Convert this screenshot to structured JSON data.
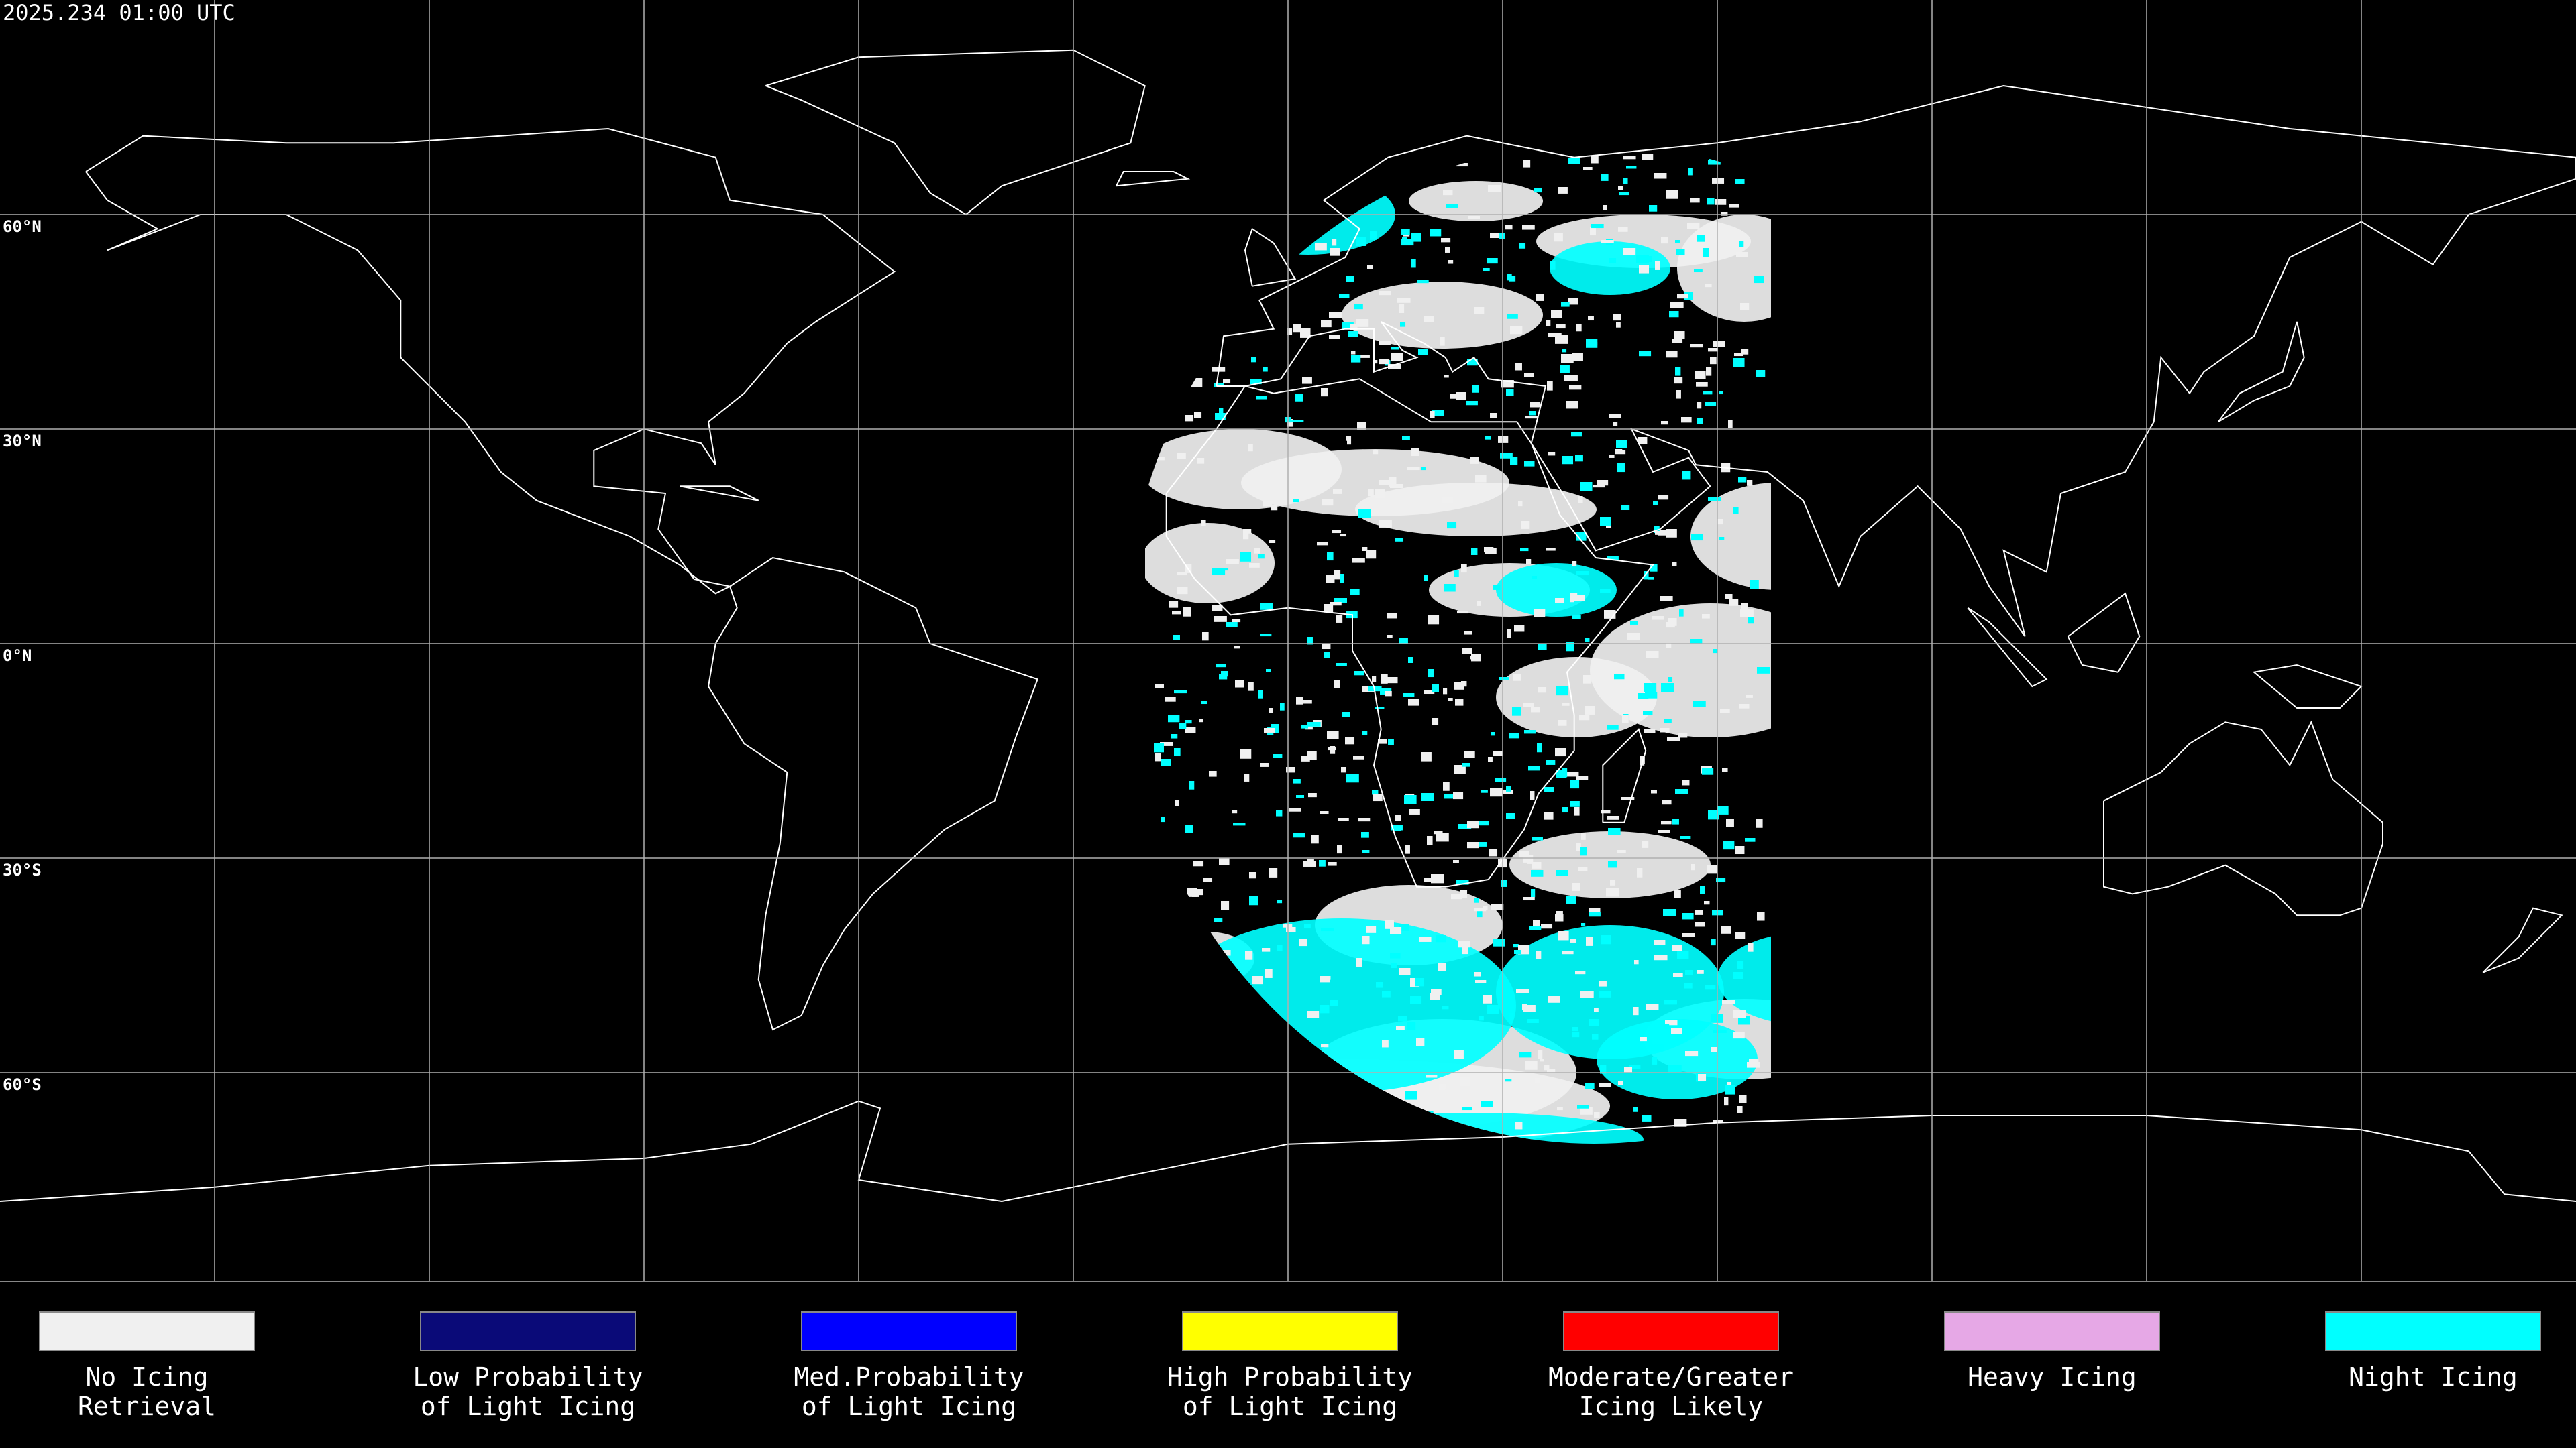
{
  "header": {
    "timestamp": "2025.234 01:00 UTC"
  },
  "map": {
    "latitude_labels": [
      "60°N",
      "30°N",
      "0°N",
      "30°S",
      "60°S"
    ]
  },
  "legend": {
    "items": [
      {
        "lines": [
          "No Icing",
          "Retrieval"
        ],
        "color": "#f0f0f0"
      },
      {
        "lines": [
          "Low Probability",
          "of Light Icing"
        ],
        "color": "#0a0a78"
      },
      {
        "lines": [
          "Med.Probability",
          "of Light Icing"
        ],
        "color": "#0000ff"
      },
      {
        "lines": [
          "High Probability",
          "of Light Icing"
        ],
        "color": "#ffff00"
      },
      {
        "lines": [
          "Moderate/Greater",
          "Icing Likely"
        ],
        "color": "#ff0000"
      },
      {
        "lines": [
          "Heavy Icing"
        ],
        "color": "#e6a8e6"
      },
      {
        "lines": [
          "Night Icing"
        ],
        "color": "#00ffff"
      }
    ]
  }
}
